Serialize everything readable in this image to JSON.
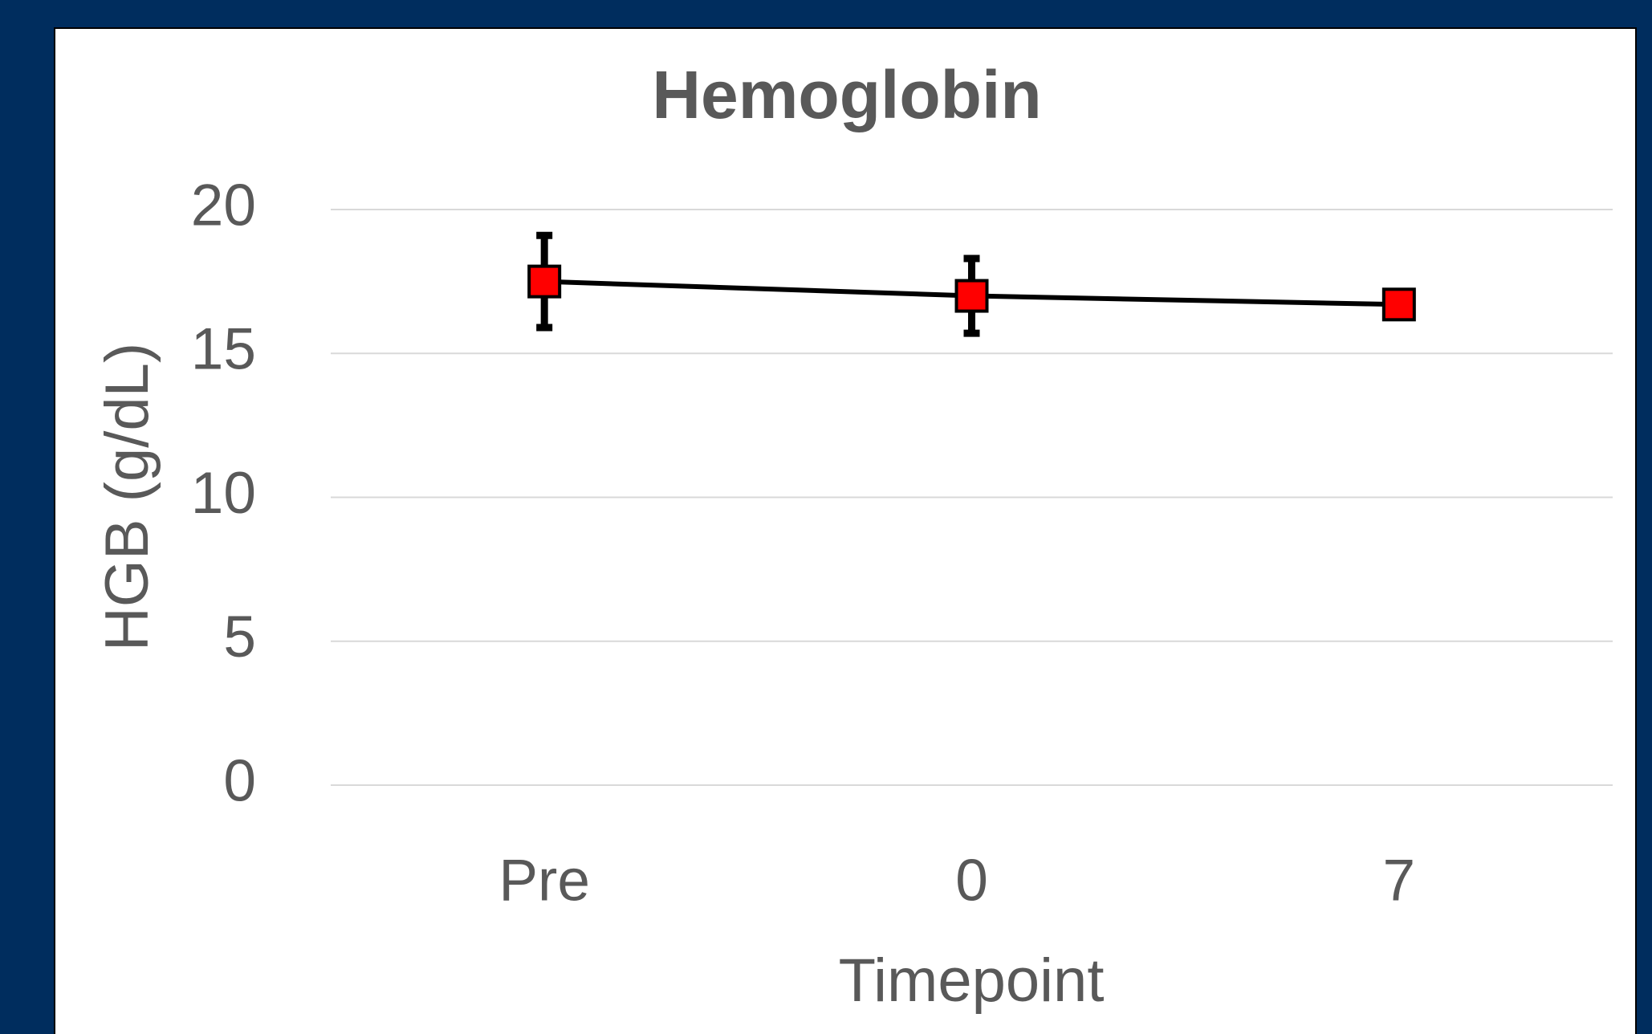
{
  "chart_data": {
    "type": "line",
    "title": "Hemoglobin",
    "x_label": "Timepoint",
    "y_label": "HGB (g/dL)",
    "categories": [
      "Pre",
      "0",
      "7"
    ],
    "series": [
      {
        "name": "HGB",
        "color": "#ff0000",
        "values": [
          17.5,
          17.0,
          16.7
        ],
        "errors": [
          1.6,
          1.3,
          null
        ]
      }
    ],
    "ylim": [
      0,
      20
    ],
    "yticks": [
      0,
      5,
      10,
      15,
      20
    ],
    "grid": true
  }
}
